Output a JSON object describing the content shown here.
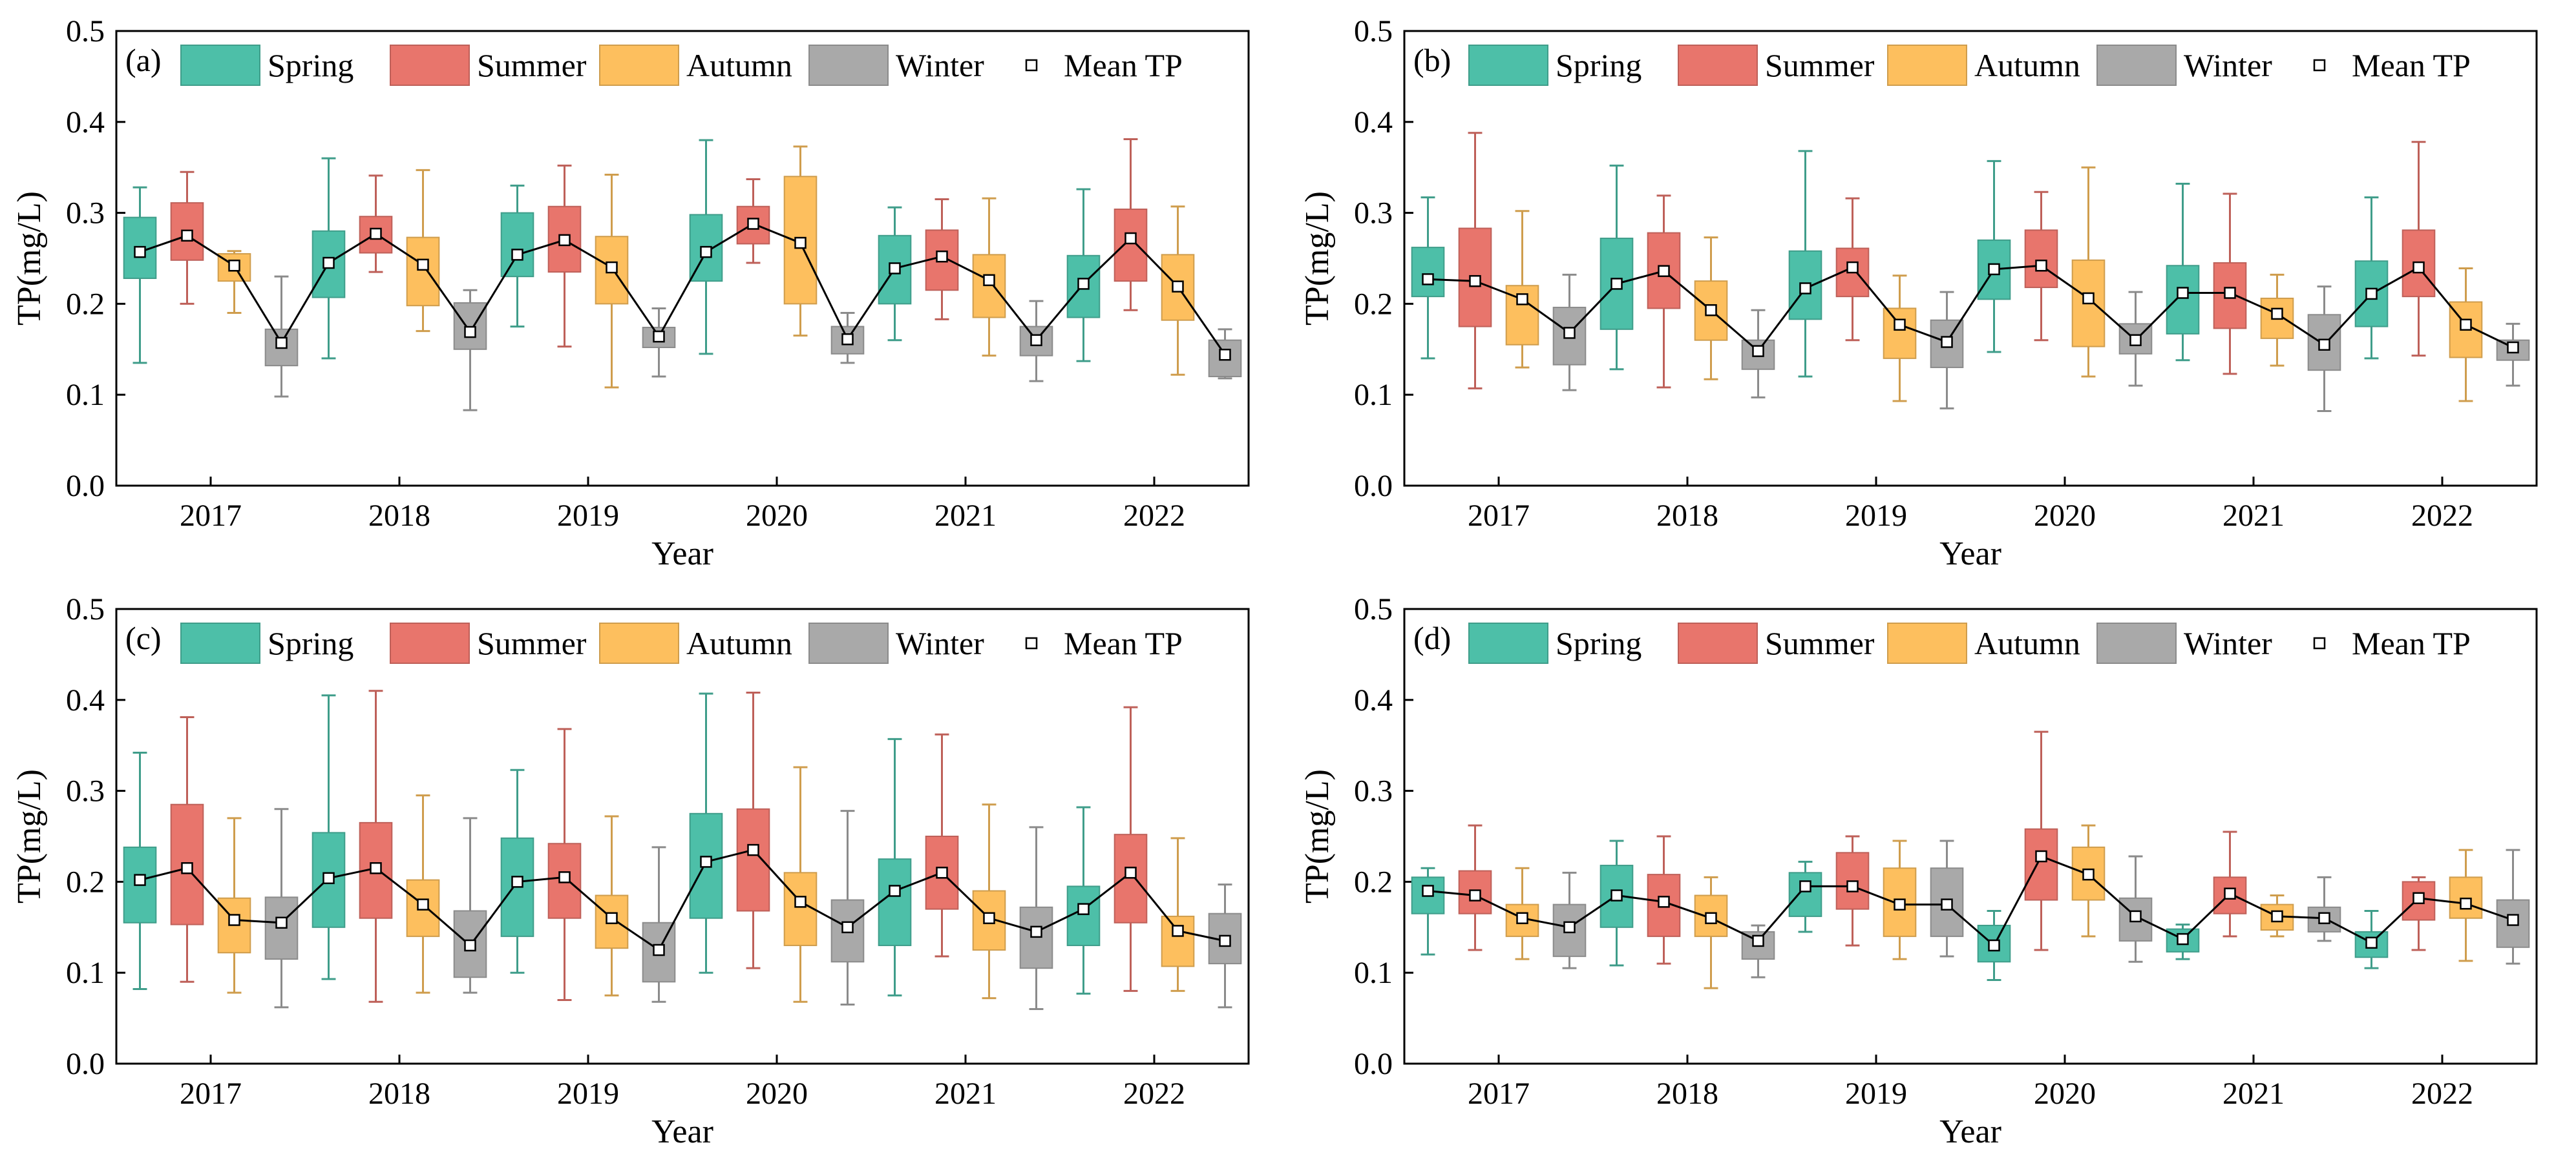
{
  "figure": {
    "season_colors": {
      "Spring": "#4dbfa8",
      "Summer": "#e8756c",
      "Autumn": "#fdbf5e",
      "Winter": "#a9a9a9"
    },
    "mean_line_color": "#000000"
  },
  "chart_data": [
    {
      "type": "box",
      "panel": "(a)",
      "xlabel": "Year",
      "ylabel": "TP(mg/L)",
      "ylim": [
        0.0,
        0.5
      ],
      "yticks": [
        "0.0",
        "0.1",
        "0.2",
        "0.3",
        "0.4",
        "0.5"
      ],
      "categories": [
        "2017",
        "2018",
        "2019",
        "2020",
        "2021",
        "2022"
      ],
      "seasons": [
        "Spring",
        "Summer",
        "Autumn",
        "Winter"
      ],
      "legend": [
        "Spring",
        "Summer",
        "Autumn",
        "Winter",
        "Mean TP"
      ],
      "series": [
        {
          "name": "Spring",
          "boxes": [
            [
              0.135,
              0.228,
              0.26,
              0.295,
              0.328
            ],
            [
              0.14,
              0.207,
              0.245,
              0.28,
              0.36
            ],
            [
              0.175,
              0.23,
              0.255,
              0.3,
              0.33
            ],
            [
              0.145,
              0.225,
              0.26,
              0.298,
              0.38
            ],
            [
              0.16,
              0.2,
              0.24,
              0.275,
              0.306
            ],
            [
              0.137,
              0.185,
              0.222,
              0.253,
              0.326
            ]
          ],
          "means": [
            0.257,
            0.245,
            0.254,
            0.257,
            0.239,
            0.222
          ]
        },
        {
          "name": "Summer",
          "boxes": [
            [
              0.2,
              0.248,
              0.275,
              0.311,
              0.345
            ],
            [
              0.235,
              0.256,
              0.275,
              0.296,
              0.341
            ],
            [
              0.153,
              0.235,
              0.27,
              0.307,
              0.352
            ],
            [
              0.245,
              0.266,
              0.288,
              0.307,
              0.337
            ],
            [
              0.183,
              0.215,
              0.252,
              0.281,
              0.315
            ],
            [
              0.193,
              0.225,
              0.272,
              0.304,
              0.381
            ]
          ],
          "means": [
            0.275,
            0.277,
            0.27,
            0.288,
            0.252,
            0.272
          ]
        },
        {
          "name": "Autumn",
          "boxes": [
            [
              0.19,
              0.225,
              0.245,
              0.255,
              0.258
            ],
            [
              0.17,
              0.198,
              0.245,
              0.273,
              0.347
            ],
            [
              0.108,
              0.2,
              0.24,
              0.274,
              0.342
            ],
            [
              0.165,
              0.2,
              0.27,
              0.34,
              0.373
            ],
            [
              0.143,
              0.185,
              0.225,
              0.254,
              0.316
            ],
            [
              0.122,
              0.182,
              0.22,
              0.254,
              0.307
            ]
          ],
          "means": [
            0.242,
            0.243,
            0.24,
            0.267,
            0.226,
            0.219
          ]
        },
        {
          "name": "Winter",
          "boxes": [
            [
              0.098,
              0.132,
              0.158,
              0.172,
              0.23
            ],
            [
              0.083,
              0.15,
              0.17,
              0.201,
              0.215
            ],
            [
              0.12,
              0.152,
              0.165,
              0.174,
              0.195
            ],
            [
              0.135,
              0.145,
              0.16,
              0.175,
              0.19
            ],
            [
              0.115,
              0.143,
              0.16,
              0.175,
              0.203
            ],
            [
              0.118,
              0.12,
              0.143,
              0.16,
              0.172
            ]
          ],
          "means": [
            0.157,
            0.169,
            0.164,
            0.161,
            0.16,
            0.144
          ]
        }
      ]
    },
    {
      "type": "box",
      "panel": "(b)",
      "xlabel": "Year",
      "ylabel": "TP(mg/L)",
      "ylim": [
        0.0,
        0.5
      ],
      "yticks": [
        "0.0",
        "0.1",
        "0.2",
        "0.3",
        "0.4",
        "0.5"
      ],
      "categories": [
        "2017",
        "2018",
        "2019",
        "2020",
        "2021",
        "2022"
      ],
      "seasons": [
        "Spring",
        "Summer",
        "Autumn",
        "Winter"
      ],
      "legend": [
        "Spring",
        "Summer",
        "Autumn",
        "Winter",
        "Mean TP"
      ],
      "series": [
        {
          "name": "Spring",
          "boxes": [
            [
              0.14,
              0.208,
              0.228,
              0.262,
              0.317
            ],
            [
              0.128,
              0.172,
              0.222,
              0.272,
              0.352
            ],
            [
              0.12,
              0.183,
              0.218,
              0.258,
              0.368
            ],
            [
              0.147,
              0.205,
              0.237,
              0.27,
              0.357
            ],
            [
              0.138,
              0.167,
              0.21,
              0.242,
              0.332
            ],
            [
              0.14,
              0.175,
              0.212,
              0.247,
              0.317
            ]
          ],
          "means": [
            0.227,
            0.222,
            0.217,
            0.238,
            0.212,
            0.211
          ]
        },
        {
          "name": "Summer",
          "boxes": [
            [
              0.107,
              0.175,
              0.225,
              0.283,
              0.388
            ],
            [
              0.108,
              0.195,
              0.237,
              0.278,
              0.319
            ],
            [
              0.16,
              0.208,
              0.24,
              0.261,
              0.316
            ],
            [
              0.16,
              0.218,
              0.243,
              0.281,
              0.323
            ],
            [
              0.123,
              0.173,
              0.213,
              0.245,
              0.321
            ],
            [
              0.143,
              0.208,
              0.24,
              0.281,
              0.378
            ]
          ],
          "means": [
            0.225,
            0.236,
            0.24,
            0.242,
            0.212,
            0.24
          ]
        },
        {
          "name": "Autumn",
          "boxes": [
            [
              0.13,
              0.155,
              0.2,
              0.22,
              0.302
            ],
            [
              0.117,
              0.16,
              0.193,
              0.225,
              0.273
            ],
            [
              0.093,
              0.14,
              0.177,
              0.195,
              0.231
            ],
            [
              0.12,
              0.153,
              0.205,
              0.248,
              0.35
            ],
            [
              0.132,
              0.162,
              0.19,
              0.206,
              0.232
            ],
            [
              0.093,
              0.141,
              0.177,
              0.202,
              0.239
            ]
          ],
          "means": [
            0.205,
            0.193,
            0.177,
            0.206,
            0.189,
            0.177
          ]
        },
        {
          "name": "Winter",
          "boxes": [
            [
              0.105,
              0.133,
              0.168,
              0.196,
              0.232
            ],
            [
              0.097,
              0.128,
              0.148,
              0.16,
              0.193
            ],
            [
              0.085,
              0.13,
              0.158,
              0.182,
              0.213
            ],
            [
              0.11,
              0.145,
              0.16,
              0.178,
              0.213
            ],
            [
              0.082,
              0.127,
              0.155,
              0.188,
              0.219
            ],
            [
              0.11,
              0.138,
              0.15,
              0.16,
              0.178
            ]
          ],
          "means": [
            0.168,
            0.148,
            0.158,
            0.16,
            0.155,
            0.152
          ]
        }
      ]
    },
    {
      "type": "box",
      "panel": "(c)",
      "xlabel": "Year",
      "ylabel": "TP(mg/L)",
      "ylim": [
        0.0,
        0.5
      ],
      "yticks": [
        "0.0",
        "0.1",
        "0.2",
        "0.3",
        "0.4",
        "0.5"
      ],
      "categories": [
        "2017",
        "2018",
        "2019",
        "2020",
        "2021",
        "2022"
      ],
      "seasons": [
        "Spring",
        "Summer",
        "Autumn",
        "Winter"
      ],
      "legend": [
        "Spring",
        "Summer",
        "Autumn",
        "Winter",
        "Mean TP"
      ],
      "series": [
        {
          "name": "Spring",
          "boxes": [
            [
              0.082,
              0.155,
              0.202,
              0.238,
              0.342
            ],
            [
              0.093,
              0.15,
              0.204,
              0.254,
              0.405
            ],
            [
              0.1,
              0.14,
              0.2,
              0.248,
              0.323
            ],
            [
              0.1,
              0.16,
              0.222,
              0.275,
              0.407
            ],
            [
              0.075,
              0.13,
              0.19,
              0.225,
              0.357
            ],
            [
              0.077,
              0.13,
              0.17,
              0.195,
              0.282
            ]
          ],
          "means": [
            0.202,
            0.204,
            0.2,
            0.222,
            0.19,
            0.17
          ]
        },
        {
          "name": "Summer",
          "boxes": [
            [
              0.09,
              0.153,
              0.215,
              0.285,
              0.381
            ],
            [
              0.068,
              0.16,
              0.215,
              0.265,
              0.41
            ],
            [
              0.07,
              0.16,
              0.205,
              0.242,
              0.368
            ],
            [
              0.105,
              0.168,
              0.235,
              0.28,
              0.408
            ],
            [
              0.118,
              0.17,
              0.21,
              0.25,
              0.362
            ],
            [
              0.08,
              0.155,
              0.21,
              0.252,
              0.392
            ]
          ],
          "means": [
            0.215,
            0.215,
            0.205,
            0.235,
            0.21,
            0.21
          ]
        },
        {
          "name": "Autumn",
          "boxes": [
            [
              0.078,
              0.122,
              0.158,
              0.182,
              0.27
            ],
            [
              0.078,
              0.14,
              0.175,
              0.202,
              0.295
            ],
            [
              0.075,
              0.127,
              0.16,
              0.185,
              0.272
            ],
            [
              0.068,
              0.13,
              0.178,
              0.21,
              0.326
            ],
            [
              0.072,
              0.125,
              0.16,
              0.19,
              0.285
            ],
            [
              0.08,
              0.107,
              0.146,
              0.162,
              0.248
            ]
          ],
          "means": [
            0.158,
            0.175,
            0.16,
            0.178,
            0.16,
            0.146
          ]
        },
        {
          "name": "Winter",
          "boxes": [
            [
              0.062,
              0.115,
              0.155,
              0.183,
              0.28
            ],
            [
              0.078,
              0.095,
              0.13,
              0.168,
              0.27
            ],
            [
              0.068,
              0.09,
              0.125,
              0.155,
              0.238
            ],
            [
              0.065,
              0.112,
              0.15,
              0.18,
              0.278
            ],
            [
              0.06,
              0.105,
              0.145,
              0.172,
              0.26
            ],
            [
              0.062,
              0.11,
              0.135,
              0.165,
              0.197
            ]
          ],
          "means": [
            0.155,
            0.13,
            0.125,
            0.15,
            0.145,
            0.135
          ]
        }
      ]
    },
    {
      "type": "box",
      "panel": "(d)",
      "xlabel": "Year",
      "ylabel": "TP(mg/L)",
      "ylim": [
        0.0,
        0.5
      ],
      "yticks": [
        "0.0",
        "0.1",
        "0.2",
        "0.3",
        "0.4",
        "0.5"
      ],
      "categories": [
        "2017",
        "2018",
        "2019",
        "2020",
        "2021",
        "2022"
      ],
      "seasons": [
        "Spring",
        "Summer",
        "Autumn",
        "Winter"
      ],
      "legend": [
        "Spring",
        "Summer",
        "Autumn",
        "Winter",
        "Mean TP"
      ],
      "series": [
        {
          "name": "Spring",
          "boxes": [
            [
              0.12,
              0.165,
              0.19,
              0.205,
              0.215
            ],
            [
              0.108,
              0.15,
              0.185,
              0.218,
              0.245
            ],
            [
              0.145,
              0.162,
              0.195,
              0.21,
              0.222
            ],
            [
              0.092,
              0.112,
              0.13,
              0.152,
              0.168
            ],
            [
              0.115,
              0.123,
              0.137,
              0.148,
              0.153
            ],
            [
              0.105,
              0.117,
              0.133,
              0.145,
              0.168
            ]
          ],
          "means": [
            0.19,
            0.185,
            0.195,
            0.13,
            0.137,
            0.133
          ]
        },
        {
          "name": "Summer",
          "boxes": [
            [
              0.125,
              0.165,
              0.185,
              0.212,
              0.262
            ],
            [
              0.11,
              0.14,
              0.178,
              0.208,
              0.25
            ],
            [
              0.13,
              0.17,
              0.195,
              0.232,
              0.25
            ],
            [
              0.125,
              0.18,
              0.228,
              0.258,
              0.365
            ],
            [
              0.14,
              0.165,
              0.187,
              0.205,
              0.255
            ],
            [
              0.125,
              0.158,
              0.182,
              0.2,
              0.205
            ]
          ],
          "means": [
            0.185,
            0.178,
            0.195,
            0.228,
            0.187,
            0.182
          ]
        },
        {
          "name": "Autumn",
          "boxes": [
            [
              0.115,
              0.14,
              0.16,
              0.175,
              0.215
            ],
            [
              0.083,
              0.14,
              0.16,
              0.185,
              0.205
            ],
            [
              0.115,
              0.14,
              0.175,
              0.215,
              0.245
            ],
            [
              0.14,
              0.18,
              0.208,
              0.238,
              0.262
            ],
            [
              0.14,
              0.147,
              0.162,
              0.175,
              0.185
            ],
            [
              0.113,
              0.16,
              0.176,
              0.205,
              0.235
            ]
          ],
          "means": [
            0.16,
            0.16,
            0.175,
            0.208,
            0.162,
            0.176
          ]
        },
        {
          "name": "Winter",
          "boxes": [
            [
              0.105,
              0.118,
              0.15,
              0.175,
              0.21
            ],
            [
              0.095,
              0.115,
              0.135,
              0.145,
              0.152
            ],
            [
              0.118,
              0.14,
              0.175,
              0.215,
              0.245
            ],
            [
              0.112,
              0.135,
              0.162,
              0.182,
              0.228
            ],
            [
              0.135,
              0.145,
              0.16,
              0.172,
              0.205
            ],
            [
              0.11,
              0.128,
              0.158,
              0.18,
              0.235
            ]
          ],
          "means": [
            0.15,
            0.135,
            0.175,
            0.162,
            0.16,
            0.158
          ]
        }
      ]
    }
  ]
}
